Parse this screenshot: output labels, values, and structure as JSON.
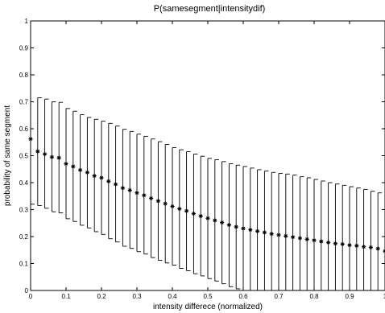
{
  "chart_data": {
    "type": "scatter",
    "title": "P(samesegment|intensitydif)",
    "xlabel": "intensity differece (normalized)",
    "ylabel": "probability of same segment",
    "xlim": [
      0,
      1
    ],
    "ylim": [
      0,
      1
    ],
    "x_ticks": [
      "0",
      "0.1",
      "0.2",
      "0.3",
      "0.4",
      "0.5",
      "0.6",
      "0.7",
      "0.8",
      "0.9",
      "1"
    ],
    "y_ticks": [
      "0",
      "0.1",
      "0.2",
      "0.3",
      "0.4",
      "0.5",
      "0.6",
      "0.7",
      "0.8",
      "0.9",
      "1"
    ],
    "grid": false,
    "marker": "asterisk",
    "error_bars": true,
    "series": [
      {
        "x": [
          0,
          0.02,
          0.04,
          0.06,
          0.08,
          0.1,
          0.12,
          0.14,
          0.16,
          0.18,
          0.2,
          0.22,
          0.24,
          0.26,
          0.28,
          0.3,
          0.32,
          0.34,
          0.36,
          0.38,
          0.4,
          0.42,
          0.44,
          0.46,
          0.48,
          0.5,
          0.52,
          0.54,
          0.56,
          0.58,
          0.6,
          0.62,
          0.64,
          0.66,
          0.68,
          0.7,
          0.72,
          0.74,
          0.76,
          0.78,
          0.8,
          0.82,
          0.84,
          0.86,
          0.88,
          0.9,
          0.92,
          0.94,
          0.96,
          0.98,
          1
        ],
        "y": [
          0.562,
          0.516,
          0.506,
          0.495,
          0.492,
          0.47,
          0.46,
          0.447,
          0.438,
          0.425,
          0.418,
          0.405,
          0.394,
          0.38,
          0.372,
          0.362,
          0.353,
          0.342,
          0.332,
          0.322,
          0.312,
          0.303,
          0.295,
          0.285,
          0.276,
          0.268,
          0.26,
          0.252,
          0.243,
          0.236,
          0.23,
          0.225,
          0.22,
          0.215,
          0.21,
          0.206,
          0.202,
          0.198,
          0.194,
          0.19,
          0.186,
          0.182,
          0.178,
          0.174,
          0.172,
          0.168,
          0.166,
          0.162,
          0.16,
          0.155,
          0.146
        ],
        "upper": [
          0.8,
          0.715,
          0.71,
          0.7,
          0.698,
          0.675,
          0.665,
          0.652,
          0.642,
          0.635,
          0.628,
          0.62,
          0.61,
          0.598,
          0.59,
          0.58,
          0.572,
          0.562,
          0.552,
          0.542,
          0.53,
          0.522,
          0.515,
          0.506,
          0.498,
          0.49,
          0.485,
          0.478,
          0.47,
          0.465,
          0.46,
          0.454,
          0.448,
          0.443,
          0.438,
          0.434,
          0.432,
          0.428,
          0.422,
          0.418,
          0.412,
          0.406,
          0.4,
          0.395,
          0.39,
          0.385,
          0.38,
          0.375,
          0.368,
          0.362,
          0.345
        ],
        "lower": [
          0.32,
          0.315,
          0.305,
          0.292,
          0.288,
          0.266,
          0.256,
          0.242,
          0.232,
          0.218,
          0.208,
          0.192,
          0.18,
          0.164,
          0.156,
          0.144,
          0.135,
          0.122,
          0.112,
          0.102,
          0.094,
          0.082,
          0.073,
          0.062,
          0.054,
          0.044,
          0.035,
          0.025,
          0.014,
          0.006,
          0.0,
          0.0,
          0.0,
          0.0,
          0.0,
          0.0,
          0.0,
          0.0,
          0.0,
          0.0,
          0.0,
          0.0,
          0.0,
          0.0,
          0.0,
          0.0,
          0.0,
          0.0,
          0.0,
          0.0,
          0.0
        ]
      }
    ]
  }
}
